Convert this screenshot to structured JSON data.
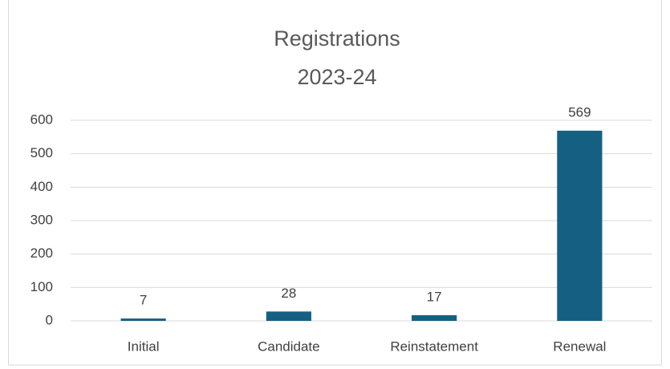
{
  "chart_data": {
    "type": "bar",
    "title": [
      "Registrations",
      "2023-24"
    ],
    "categories": [
      "Initial",
      "Candidate",
      "Reinstatement",
      "Renewal"
    ],
    "values": [
      7,
      28,
      17,
      569
    ],
    "color": "#156082",
    "ylim": [
      0,
      600
    ],
    "yticks": [
      0,
      100,
      200,
      300,
      400,
      500,
      600
    ],
    "grid": true,
    "data_labels": true
  }
}
